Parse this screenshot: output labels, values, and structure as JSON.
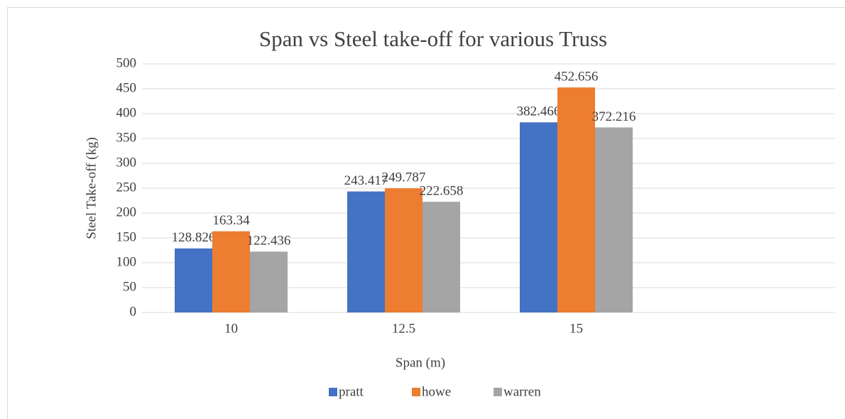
{
  "chart_data": {
    "type": "bar",
    "title": "Span vs Steel take-off for various Truss",
    "x_label": "Span (m)",
    "y_label": "Steel Take-off (kg)",
    "categories": [
      "10",
      "12.5",
      "15",
      null
    ],
    "series": [
      {
        "name": "pratt",
        "color": "#4472c4",
        "values": [
          128.826,
          243.417,
          382.466,
          null
        ]
      },
      {
        "name": "howe",
        "color": "#ed7d31",
        "values": [
          163.34,
          249.787,
          452.656,
          null
        ]
      },
      {
        "name": "warren",
        "color": "#a5a5a5",
        "values": [
          122.436,
          222.658,
          372.216,
          null
        ]
      }
    ],
    "ylim": [
      0,
      500
    ],
    "yticks": [
      0,
      50,
      100,
      150,
      200,
      250,
      300,
      350,
      400,
      450,
      500
    ],
    "grid": true,
    "legend": "bottom"
  }
}
